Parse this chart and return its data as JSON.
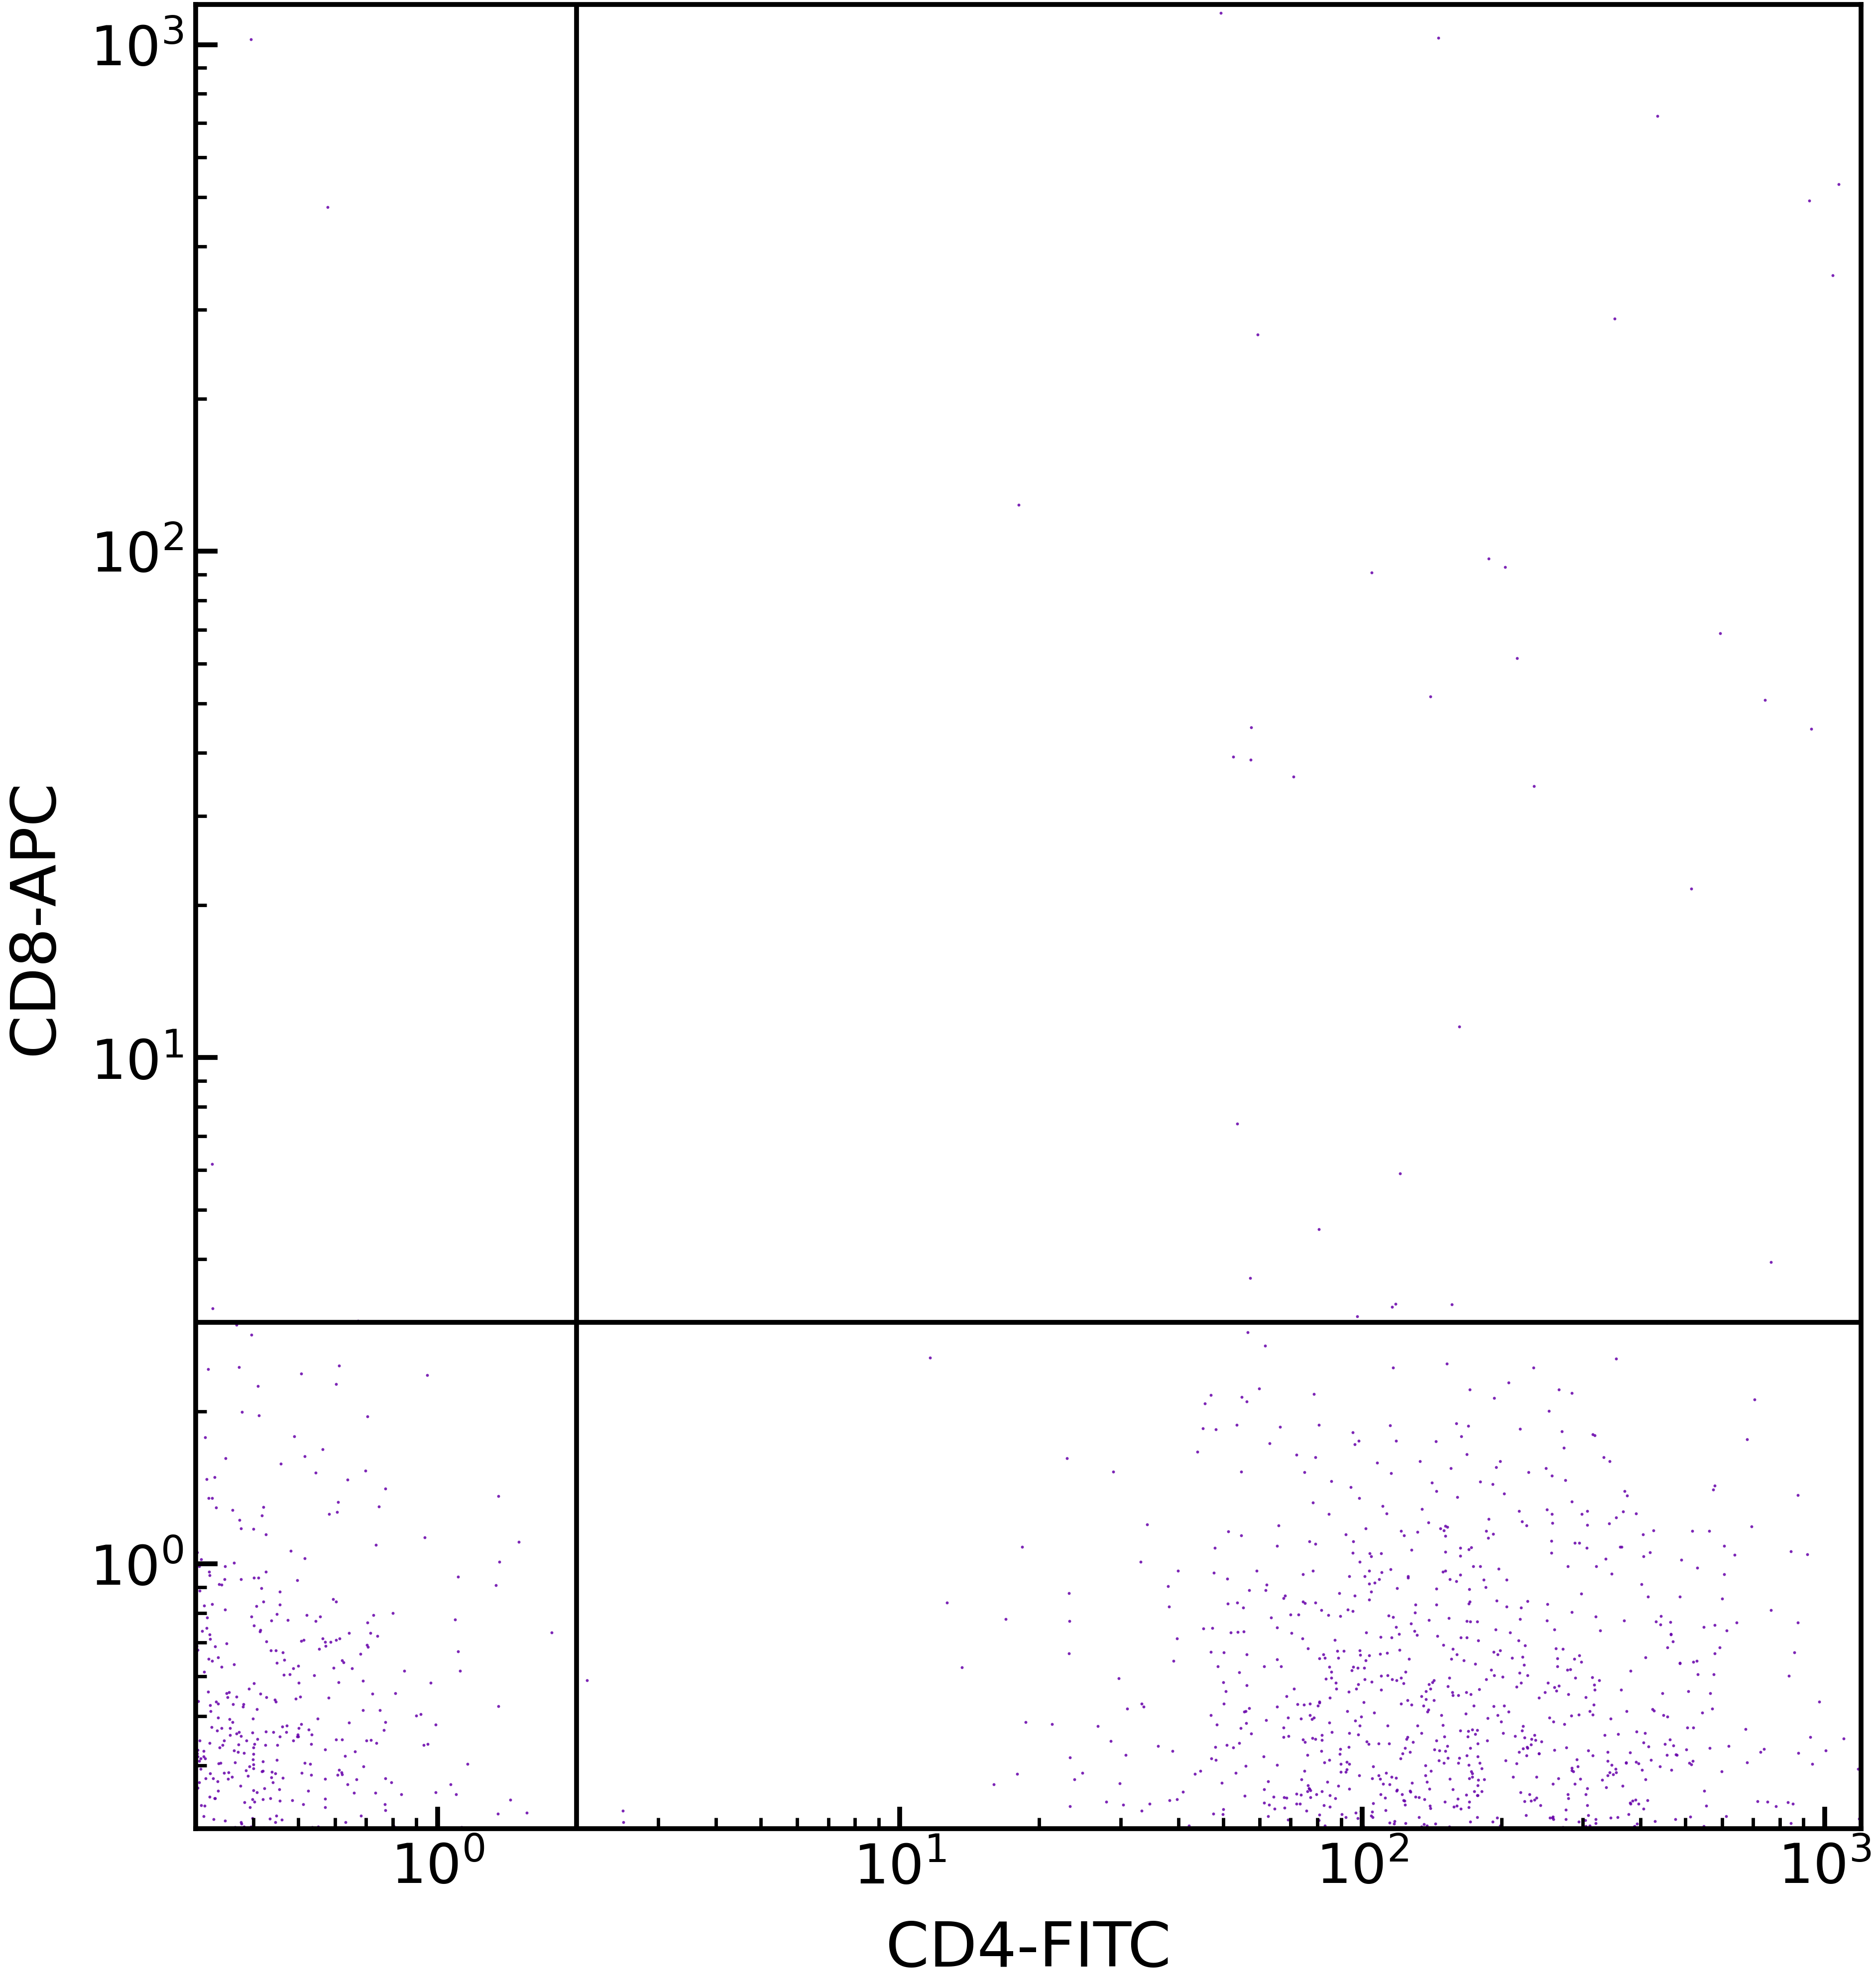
{
  "xlabel": "CD4-FITC",
  "ylabel": "CD8-APC",
  "dot_color": "#6600AA",
  "dot_alpha": 0.85,
  "dot_size": 18,
  "xlim": [
    0.3,
    1200
  ],
  "ylim": [
    0.3,
    1200
  ],
  "quadrant_x": 2.0,
  "quadrant_y": 3.0,
  "xlabel_fontsize": 90,
  "ylabel_fontsize": 90,
  "tick_fontsize": 80,
  "linewidth": 7,
  "background_color": "#ffffff",
  "seed": 42,
  "pop1_n": 3000,
  "pop1_x_mu": -0.65,
  "pop1_x_sigma": 0.38,
  "pop1_y_mu": 5.85,
  "pop1_y_sigma": 1.0,
  "pop2_n": 2200,
  "pop2_x_mu": 2.2,
  "pop2_x_sigma": 0.35,
  "pop2_y_mu": -0.65,
  "pop2_y_sigma": 0.45,
  "pop3_n": 2800,
  "pop3_x_mu": -0.65,
  "pop3_x_sigma": 0.32,
  "pop3_y_mu": -0.65,
  "pop3_y_sigma": 0.42,
  "pop4_n": 60,
  "pop4_x_mu": 1.7,
  "pop4_x_sigma": 0.4,
  "pop4_y_mu": 5.0,
  "pop4_y_sigma": 0.6,
  "pop5_n": 25,
  "pop5_x_mu": 2.3,
  "pop5_x_sigma": 0.5,
  "pop5_y_mu": 2.0,
  "pop5_y_sigma": 0.6
}
